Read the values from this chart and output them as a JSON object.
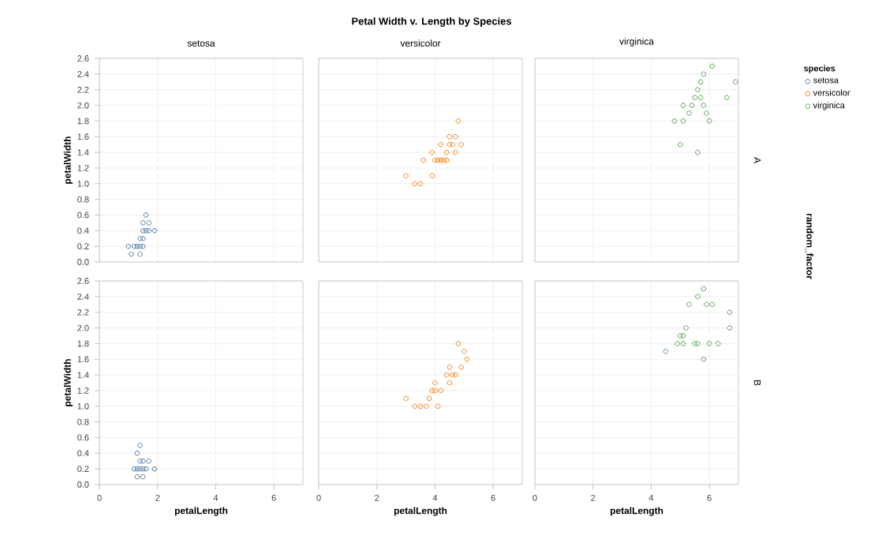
{
  "chart_data": [
    {
      "type": "scatter",
      "title": "setosa",
      "ylabel": "petalWidth",
      "annotations": [
        "Petal Width v. Length by Species"
      ],
      "xlim": [
        0,
        7
      ],
      "ylim": [
        0,
        2.6
      ],
      "xticks": [
        0,
        2,
        4,
        6
      ],
      "yticks": [
        {
          "value": 0,
          "label": "0.0"
        },
        0.2,
        0.4,
        0.6,
        0.8,
        {
          "value": 1,
          "label": "1.0"
        },
        1.2,
        1.4,
        1.6,
        1.8,
        {
          "value": 2,
          "label": "2.0"
        },
        2.2,
        2.4,
        2.6
      ],
      "tick_labels": "y",
      "grid": true,
      "marker": "circle",
      "series": [
        {
          "color": "#4c78a8",
          "x": [
            1.4,
            1.3,
            1.5,
            1.4,
            1.7,
            1.5,
            1.6,
            1.5,
            1.2,
            1.0,
            1.1,
            1.6,
            1.9,
            1.4,
            1.7,
            1.5
          ],
          "values": [
            0.2,
            0.2,
            0.2,
            0.3,
            0.4,
            0.4,
            0.6,
            0.5,
            0.2,
            0.2,
            0.1,
            0.4,
            0.4,
            0.1,
            0.5,
            0.3
          ]
        }
      ]
    },
    {
      "type": "scatter",
      "title": "versicolor",
      "xlim": [
        0,
        7
      ],
      "ylim": [
        0,
        2.6
      ],
      "xticks": [
        0,
        2,
        4,
        6
      ],
      "yticks": [
        0,
        0.2,
        0.4,
        0.6,
        0.8,
        1,
        1.2,
        1.4,
        1.6,
        1.8,
        2,
        2.2,
        2.4,
        2.6
      ],
      "tick_labels": false,
      "grid": true,
      "marker": "circle",
      "series": [
        {
          "color": "#f58518",
          "x": [
            3.0,
            3.3,
            3.5,
            3.9,
            3.6,
            4.0,
            4.2,
            4.4,
            4.5,
            4.1,
            4.7,
            4.5,
            4.6,
            4.8,
            4.4,
            3.9,
            4.3,
            4.9,
            4.7,
            4.2
          ],
          "values": [
            1.1,
            1.0,
            1.0,
            1.1,
            1.3,
            1.3,
            1.3,
            1.4,
            1.5,
            1.3,
            1.4,
            1.6,
            1.5,
            1.8,
            1.3,
            1.4,
            1.3,
            1.5,
            1.6,
            1.5
          ]
        }
      ]
    },
    {
      "type": "scatter",
      "title": "virginica",
      "annotations": [
        "A",
        "random_factor"
      ],
      "legend": "right",
      "legend_title": "species",
      "xlim": [
        0,
        7
      ],
      "ylim": [
        0,
        2.6
      ],
      "xticks": [
        0,
        2,
        4,
        6
      ],
      "yticks": [
        0,
        0.2,
        0.4,
        0.6,
        0.8,
        1,
        1.2,
        1.4,
        1.6,
        1.8,
        2,
        2.2,
        2.4,
        2.6
      ],
      "tick_labels": false,
      "grid": true,
      "marker": "circle",
      "series": [
        {
          "name": "setosa",
          "color": "#4c78a8"
        },
        {
          "name": "versicolor",
          "color": "#f58518"
        },
        {
          "name": "virginica",
          "color": "#54a24b",
          "x": [
            6.1,
            5.8,
            5.7,
            5.6,
            6.9,
            6.6,
            5.5,
            5.4,
            5.3,
            5.1,
            4.8,
            5.0,
            5.6,
            5.9,
            5.8,
            6.0,
            5.1,
            5.7
          ],
          "values": [
            2.5,
            2.4,
            2.3,
            2.2,
            2.3,
            2.1,
            2.1,
            2.0,
            1.9,
            1.8,
            1.8,
            1.5,
            1.4,
            1.9,
            2.0,
            1.8,
            2.0,
            2.1
          ]
        }
      ]
    },
    {
      "type": "scatter",
      "xlabel": "petalLength",
      "ylabel": "petalWidth",
      "xlim": [
        0,
        7
      ],
      "ylim": [
        0,
        2.6
      ],
      "xticks": [
        0,
        2,
        4,
        6
      ],
      "yticks": [
        {
          "value": 0,
          "label": "0.0"
        },
        0.2,
        0.4,
        0.6,
        0.8,
        {
          "value": 1,
          "label": "1.0"
        },
        1.2,
        1.4,
        1.6,
        1.8,
        {
          "value": 2,
          "label": "2.0"
        },
        2.2,
        2.4,
        2.6
      ],
      "grid": true,
      "marker": "circle",
      "series": [
        {
          "color": "#4c78a8",
          "x": [
            1.4,
            1.3,
            1.5,
            1.4,
            1.6,
            1.2,
            1.5,
            1.9,
            1.3,
            1.4,
            1.7,
            1.5,
            1.3
          ],
          "values": [
            0.2,
            0.2,
            0.1,
            0.3,
            0.2,
            0.2,
            0.2,
            0.2,
            0.4,
            0.5,
            0.3,
            0.3,
            0.1
          ]
        }
      ]
    },
    {
      "type": "scatter",
      "xlabel": "petalLength",
      "xlim": [
        0,
        7
      ],
      "ylim": [
        0,
        2.6
      ],
      "xticks": [
        0,
        2,
        4,
        6
      ],
      "yticks": [
        0,
        0.2,
        0.4,
        0.6,
        0.8,
        1,
        1.2,
        1.4,
        1.6,
        1.8,
        2,
        2.2,
        2.4,
        2.6
      ],
      "tick_labels": "x",
      "grid": true,
      "marker": "circle",
      "series": [
        {
          "color": "#f58518",
          "x": [
            3.0,
            3.3,
            3.5,
            3.7,
            3.8,
            4.0,
            4.0,
            4.1,
            4.2,
            4.4,
            4.5,
            4.6,
            4.7,
            4.8,
            4.9,
            5.0,
            4.5,
            3.9,
            5.1
          ],
          "values": [
            1.1,
            1.0,
            1.0,
            1.0,
            1.1,
            1.2,
            1.3,
            1.0,
            1.2,
            1.4,
            1.5,
            1.4,
            1.4,
            1.8,
            1.5,
            1.7,
            1.3,
            1.2,
            1.6
          ]
        }
      ]
    },
    {
      "type": "scatter",
      "xlabel": "petalLength",
      "annotations": [
        "B"
      ],
      "xlim": [
        0,
        7
      ],
      "ylim": [
        0,
        2.6
      ],
      "xticks": [
        0,
        2,
        4,
        6
      ],
      "yticks": [
        0,
        0.2,
        0.4,
        0.6,
        0.8,
        1,
        1.2,
        1.4,
        1.6,
        1.8,
        2,
        2.2,
        2.4,
        2.6
      ],
      "tick_labels": "x",
      "grid": true,
      "marker": "circle",
      "series": [
        {
          "color": "#54a24b",
          "x": [
            5.8,
            6.1,
            6.7,
            6.7,
            5.9,
            5.6,
            5.3,
            5.5,
            5.1,
            4.5,
            4.9,
            5.0,
            5.2,
            5.8,
            5.1,
            6.3,
            5.6,
            6.0
          ],
          "values": [
            2.5,
            2.3,
            2.0,
            2.2,
            2.3,
            2.4,
            2.3,
            1.8,
            1.8,
            1.7,
            1.8,
            1.9,
            2.0,
            1.6,
            1.9,
            1.8,
            1.8,
            1.8
          ]
        }
      ]
    }
  ]
}
